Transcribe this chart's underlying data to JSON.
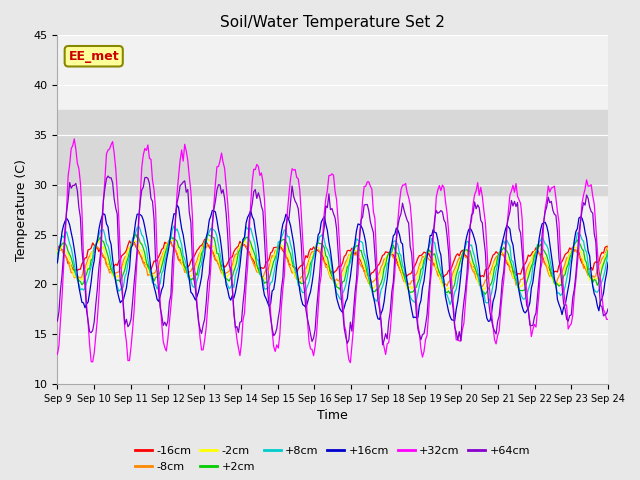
{
  "title": "Soil/Water Temperature Set 2",
  "xlabel": "Time",
  "ylabel": "Temperature (C)",
  "ylim": [
    10,
    45
  ],
  "yticks": [
    10,
    15,
    20,
    25,
    30,
    35,
    40,
    45
  ],
  "x_labels": [
    "Sep 9",
    "Sep 10",
    "Sep 11",
    "Sep 12",
    "Sep 13",
    "Sep 14",
    "Sep 15",
    "Sep 16",
    "Sep 17",
    "Sep 18",
    "Sep 19",
    "Sep 20",
    "Sep 21",
    "Sep 22",
    "Sep 23",
    "Sep 24"
  ],
  "annotation_text": "EE_met",
  "annotation_color": "#cc0000",
  "annotation_bg": "#ffff99",
  "annotation_border": "#888800",
  "series": [
    {
      "label": "-16cm",
      "color": "#ff0000"
    },
    {
      "label": "-8cm",
      "color": "#ff8800"
    },
    {
      "label": "-2cm",
      "color": "#ffff00"
    },
    {
      "label": "+2cm",
      "color": "#00cc00"
    },
    {
      "label": "+8cm",
      "color": "#00cccc"
    },
    {
      "label": "+16cm",
      "color": "#0000cc"
    },
    {
      "label": "+32cm",
      "color": "#ff00ff"
    },
    {
      "label": "+64cm",
      "color": "#8800cc"
    }
  ],
  "figure_bg": "#e8e8e8",
  "axes_bg": "#f2f2f2",
  "shaded_lo": 29.0,
  "shaded_hi": 37.5,
  "shaded_color": "#d8d8d8",
  "grid_color": "#ffffff",
  "n_days": 15,
  "n_points": 360
}
